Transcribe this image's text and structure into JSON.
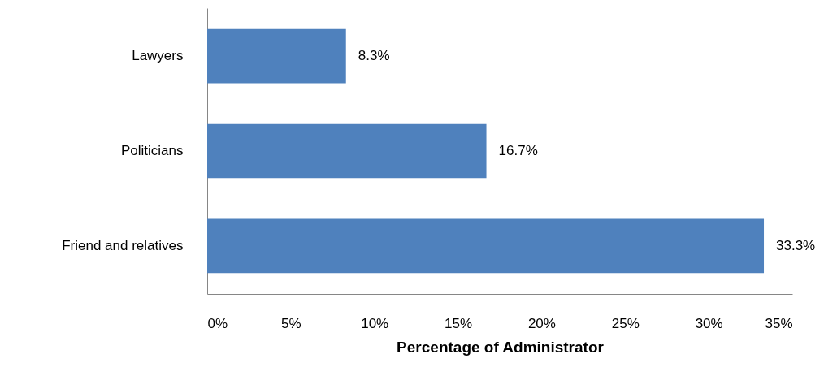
{
  "chart_data": {
    "type": "bar",
    "orientation": "horizontal",
    "xlabel": "Percentage of Administrator",
    "categories": [
      "Lawyers",
      "Politicians",
      "Friend and relatives"
    ],
    "values": [
      8.3,
      16.7,
      33.3
    ],
    "color": "#4f81bd",
    "value_labels": [
      "8.3%",
      "16.7%",
      "33.3%"
    ],
    "xlim": [
      0,
      35
    ],
    "xticks": [
      {
        "value": 0,
        "label": "0%"
      },
      {
        "value": 5,
        "label": "5%"
      },
      {
        "value": 10,
        "label": "10%"
      },
      {
        "value": 15,
        "label": "15%"
      },
      {
        "value": 20,
        "label": "20%"
      },
      {
        "value": 25,
        "label": "25%"
      },
      {
        "value": 30,
        "label": "30%"
      },
      {
        "value": 35,
        "label": "35%"
      }
    ],
    "grid": false
  }
}
